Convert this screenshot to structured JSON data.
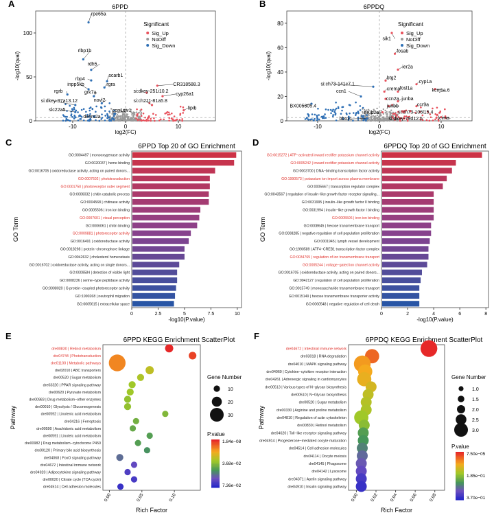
{
  "chart_data": [
    {
      "id": "A",
      "type": "scatter",
      "panel_label": "A",
      "title": "6PPD",
      "xlabel": "log2(FC)",
      "ylabel": "-log10(qval)",
      "xlim": [
        -17,
        17
      ],
      "ylim": [
        0,
        125
      ],
      "xticks": [
        -10,
        0,
        10
      ],
      "yticks": [
        0,
        50,
        100
      ],
      "legend": {
        "title": "Significant",
        "items": [
          {
            "label": "Sig_Up",
            "color": "#e8505b"
          },
          {
            "label": "NoDiff",
            "color": "#9a9a9a"
          },
          {
            "label": "Sig_Down",
            "color": "#2e6fb5"
          }
        ]
      },
      "labels": [
        {
          "text": "rpe65a",
          "x": -7,
          "y": 112,
          "tx": -6.5,
          "ty": 120
        },
        {
          "text": "rlbp1b",
          "x": -8,
          "y": 70,
          "tx": -9,
          "ty": 78
        },
        {
          "text": "rdh5",
          "x": -6.5,
          "y": 58,
          "tx": -7.2,
          "ty": 63
        },
        {
          "text": "scarb1",
          "x": -3.5,
          "y": 45,
          "tx": -3.2,
          "ty": 50
        },
        {
          "text": "rbp4",
          "x": -6.5,
          "y": 46,
          "tx": -9.5,
          "ty": 46
        },
        {
          "text": "rgra",
          "x": -4,
          "y": 38,
          "tx": -3.6,
          "ty": 40
        },
        {
          "text": "inpp5kb",
          "x": -7,
          "y": 36,
          "tx": -11,
          "ty": 40
        },
        {
          "text": "CR318588.3",
          "x": 6,
          "y": 40,
          "tx": 9,
          "ty": 40
        },
        {
          "text": "si:dkey-251i10.2",
          "x": 4,
          "y": 32,
          "tx": 1.5,
          "ty": 32
        },
        {
          "text": "cyp26a1",
          "x": 7,
          "y": 28,
          "tx": 9.5,
          "ty": 29
        },
        {
          "text": "rgrb",
          "x": -11,
          "y": 30,
          "tx": -13.5,
          "ty": 32
        },
        {
          "text": "grk7a",
          "x": -6,
          "y": 28,
          "tx": -7.8,
          "ty": 31
        },
        {
          "text": "si:dkey-97a13.12",
          "x": -9.5,
          "y": 18,
          "tx": -16,
          "ty": 21
        },
        {
          "text": "novl2",
          "x": -4.5,
          "y": 20,
          "tx": -6,
          "ty": 22
        },
        {
          "text": "si:ch211-81a5.8",
          "x": 5,
          "y": 18,
          "tx": 1.5,
          "ty": 21
        },
        {
          "text": "slc22a5",
          "x": -9.5,
          "y": 10,
          "tx": -14.5,
          "ty": 11
        },
        {
          "text": "lipib",
          "x": 11,
          "y": 12,
          "tx": 11.8,
          "ty": 13
        },
        {
          "text": "cpn1sw1",
          "x": -2,
          "y": 8,
          "tx": -2.5,
          "ty": 10
        },
        {
          "text": "dehrs2a",
          "x": -6,
          "y": 5,
          "tx": -8,
          "ty": 3
        }
      ]
    },
    {
      "id": "B",
      "type": "scatter",
      "panel_label": "B",
      "title": "6PPDQ",
      "xlabel": "log2(FC)",
      "ylabel": "-log10(qval)",
      "xlim": [
        -15,
        15
      ],
      "ylim": [
        0,
        90
      ],
      "xticks": [
        -10,
        0,
        10
      ],
      "yticks": [
        0,
        20,
        40,
        60,
        80
      ],
      "legend": {
        "title": "Significant",
        "items": [
          {
            "label": "Sig_Up",
            "color": "#e8505b"
          },
          {
            "label": "NoDiff",
            "color": "#9a9a9a"
          },
          {
            "label": "Sig_Down",
            "color": "#2e6fb5"
          }
        ]
      },
      "labels": [
        {
          "text": "sik1",
          "x": 2,
          "y": 72,
          "tx": 0.5,
          "ty": 66
        },
        {
          "text": "fosab",
          "x": 2.5,
          "y": 55,
          "tx": 2.8,
          "ty": 56
        },
        {
          "text": "ier2a",
          "x": 3,
          "y": 42,
          "tx": 3.7,
          "ty": 43
        },
        {
          "text": "btg2",
          "x": 1,
          "y": 33,
          "tx": 1.2,
          "ty": 34
        },
        {
          "text": "cyp1a",
          "x": 6,
          "y": 30,
          "tx": 6.4,
          "ty": 31
        },
        {
          "text": "si:ch73-141c7.1",
          "x": -1,
          "y": 28,
          "tx": -9.5,
          "ty": 29
        },
        {
          "text": "crema",
          "x": 0.8,
          "y": 24,
          "tx": 1.2,
          "ty": 25
        },
        {
          "text": "fosl1a",
          "x": 3,
          "y": 24,
          "tx": 3.3,
          "ty": 25.5
        },
        {
          "text": "kcnj1a.6",
          "x": 9,
          "y": 26,
          "tx": 8.5,
          "ty": 24
        },
        {
          "text": "ccn1",
          "x": -3,
          "y": 20,
          "tx": -7,
          "ty": 23
        },
        {
          "text": "ccn2a",
          "x": 1,
          "y": 18,
          "tx": 1.1,
          "ty": 17
        },
        {
          "text": "junba",
          "x": 3,
          "y": 16,
          "tx": 3.6,
          "ty": 17
        },
        {
          "text": "ccr9a",
          "x": 6,
          "y": 12,
          "tx": 6.1,
          "ty": 12
        },
        {
          "text": "junbb",
          "x": 1.5,
          "y": 12,
          "tx": 1.2,
          "ty": 11
        },
        {
          "text": "BX005305.4",
          "x": -11,
          "y": 14,
          "tx": -14.5,
          "ty": 11
        },
        {
          "text": "nr0b2a",
          "x": 0.5,
          "y": 7,
          "tx": -2.5,
          "ty": 5.5
        },
        {
          "text": "si:ch73-106l15.4",
          "x": 5,
          "y": 8,
          "tx": 3,
          "ty": 6
        },
        {
          "text": "bbox1",
          "x": -2,
          "y": 2,
          "tx": -6.5,
          "ty": 0.5
        },
        {
          "text": "si:dkey-79d12.5",
          "x": 4,
          "y": 2,
          "tx": 1.5,
          "ty": 0.5
        },
        {
          "text": "lcima",
          "x": 10,
          "y": 3,
          "tx": 9.5,
          "ty": 1
        }
      ]
    },
    {
      "id": "C",
      "type": "bar",
      "panel_label": "C",
      "title": "6PPD Top 20 of GO Enrichment",
      "xlabel": "-log10(P.value)",
      "ylabel": "GO Term",
      "xlim": [
        0,
        10.4
      ],
      "xticks": [
        0,
        2.5,
        5.0,
        7.5,
        10.0
      ],
      "categories": [
        "GO:0004497 | monooxygenase activity",
        "GO:0020037 | heme binding",
        "GO:0016705 | oxidoreductase activity, acting on paired donors...",
        "GO:0007602 | phototransduction",
        "GO:0001750 | photoreceptor outer segment",
        "GO:0006032 | chitin catabolic process",
        "GO:0004568 | chitinase activity",
        "GO:0005506 | iron ion binding",
        "GO:0007601 | visual perception",
        "GO:0006061 | chitin binding",
        "GO:0009881 | photoreceptor activity",
        "GO:0016491 | oxidoreductase activity",
        "GO:0018298 | protein−chromophore linkage",
        "GO:0042632 | cholesterol homeostasis",
        "GO:0016702 | oxidoreductase activity, acting on single donors...",
        "GO:0009584 | detection of visible light",
        "GO:0008236 | serine−type peptidase activity",
        "GO:0008020 | G protein−coupled photoreceptor activity",
        "GO:1990268 | neutrophil migration",
        "GO:0005615 | extracellular space"
      ],
      "values": [
        9.9,
        9.7,
        7.9,
        7.4,
        7.4,
        7.3,
        7.3,
        6.5,
        6.4,
        6.2,
        5.6,
        5.4,
        5.0,
        5.0,
        4.5,
        4.3,
        4.3,
        4.2,
        4.1,
        4.0
      ],
      "highlighted": [
        3,
        4,
        8,
        10
      ]
    },
    {
      "id": "D",
      "type": "bar",
      "panel_label": "D",
      "title": "6PPDQ Top 20 of GO Enrichment",
      "xlabel": "-log10(P.value)",
      "ylabel": "GO Term",
      "xlim": [
        0,
        8.2
      ],
      "xticks": [
        0,
        2,
        4,
        6,
        8
      ],
      "categories": [
        "GO:0015272 | ATP−activated inward rectifier potassium channel activity",
        "GO:0005242 | inward rectifier potassium channel activity",
        "GO:0003700 | DNA−binding transcription factor activity",
        "GO:1990573 | potassium ion import across plasma membrane",
        "GO:0005667 | transcription regulator complex",
        "GO:0043567 | regulation of insulin−like growth factor receptor signaling...",
        "GO:0031995 | insulin−like growth factor II binding",
        "GO:0031994 | insulin−like growth factor I binding",
        "GO:0005506 | iron ion binding",
        "GO:0008645 | hexose transmembrane transport",
        "GO:0008285 | negative regulation of cell population proliferation",
        "GO:0001945 | lymph vessel development",
        "GO:1990589 | ATF4−CREB1 transcription factor complex",
        "GO:0034765 | regulation of ion transmembrane transport",
        "GO:0005244 | voltage−gated ion channel activity",
        "GO:0016705 | oxidoreductase activity, acting on paired donors...",
        "GO:0042127 | regulation of cell population proliferation",
        "GO:0015749 | monosaccharide transmembrane transport",
        "GO:0015149 | hexose transmembrane transporter activity",
        "GO:0060548 | negative regulation of cell death"
      ],
      "values": [
        7.7,
        5.7,
        5.4,
        5.0,
        4.7,
        4.0,
        4.0,
        4.0,
        4.0,
        3.8,
        3.8,
        3.7,
        3.6,
        3.6,
        3.5,
        3.1,
        3.0,
        2.9,
        2.9,
        2.9
      ],
      "highlighted": [
        0,
        1,
        3,
        8,
        13,
        14
      ]
    },
    {
      "id": "E",
      "type": "scatter",
      "panel_label": "E",
      "title": "6PPD KEGG Enrichment ScatterPlot",
      "xlabel": "Rich Factor",
      "ylabel": "Pathway",
      "xlim": [
        -0.01,
        0.14
      ],
      "xticks": [
        0.0,
        0.05,
        0.1
      ],
      "categories": [
        "dre00830 | Retinol metabolism",
        "dre04744 | Phototransduction",
        "dre01100 | Metabolic pathways",
        "dre02010 | ABC transporters",
        "dre00520 | Sugar metabolism",
        "dre03320 | PPAR signaling pathway",
        "dre00620 | Pyruvate metabolism",
        "dre00983 | Drug metabolism−other enzymes",
        "dre00010 | Glycolysis / Gluconeogenesis",
        "dre00592 | Linolenic acid metabolism",
        "dre04216 | Ferroptosis",
        "dre00590 | Arachidonic acid metabolism",
        "dre00591 | Linoleic acid metabolism",
        "dre00982 | Drug metabolism−cytochrome P450",
        "dre00120 | Primary bile acid biosynthesis",
        "dre04068 | FoxO signaling pathway",
        "dre04672 | Intestinal immune network",
        "dre04920 | Adipocytokine signaling pathway",
        "dre00020 | Citrate cycle (TCA cycle)",
        "dre04514 | Cell adhesion molecules"
      ],
      "values": [
        0.092,
        0.128,
        0.012,
        0.062,
        0.048,
        0.035,
        0.032,
        0.028,
        0.028,
        0.086,
        0.041,
        0.036,
        0.062,
        0.044,
        0.058,
        0.016,
        0.038,
        0.028,
        0.038,
        0.017
      ],
      "gene_number": [
        5,
        4,
        35,
        5,
        3,
        3,
        3,
        3,
        3,
        2,
        2,
        2,
        2,
        2,
        2,
        3,
        2,
        2,
        2,
        2
      ],
      "pvalue_color": [
        0.0,
        0.05,
        0.18,
        0.38,
        0.42,
        0.45,
        0.45,
        0.48,
        0.48,
        0.52,
        0.55,
        0.58,
        0.62,
        0.62,
        0.66,
        0.75,
        0.85,
        0.9,
        0.92,
        0.96
      ],
      "highlighted": [
        0,
        1,
        2
      ],
      "size_legend": {
        "title": "Gene Number",
        "values": [
          "10",
          "20",
          "30"
        ],
        "radii_frac": [
          0.33,
          0.66,
          1.0
        ]
      },
      "color_legend": {
        "title": "P.value",
        "ticks": [
          "1.84e−08",
          "3.68e−02",
          "7.36e−02"
        ]
      }
    },
    {
      "id": "F",
      "type": "scatter",
      "panel_label": "F",
      "title": "6PPDQ KEGG Enrichment ScatterPlot",
      "xlabel": "Rich Factor",
      "ylabel": "Pathway",
      "xlim": [
        -0.008,
        0.09
      ],
      "xticks": [
        0.0,
        0.02,
        0.04,
        0.06,
        0.08
      ],
      "categories": [
        "dre04672 | Intestinal immune network",
        "dre03018 | RNA degradation",
        "dre04010 | MAPK signaling pathway",
        "dre04060 | Cytokine−cytokine receptor interaction",
        "dre04261 | Adrenergic signaling in cardiomyocytes",
        "dre00513 | Various types of N−glycan biosynthesis",
        "dre00510 | N−Glycan biosynthesis",
        "dre00520 | Sugar metabolism",
        "dre00330 | Arginine and proline metabolism",
        "dre04810 | Regulation of actin cytoskeleton",
        "dre00830 | Retinol metabolism",
        "dre04620 | Toll−like receptor signaling pathway",
        "dre04914 | Progesterone−mediated oocyte maturation",
        "dre04514 | Cell adhesion molecules",
        "dre04114 | Oocyte meiosis",
        "dre04145 | Phagosome",
        "dre04142 | Lysosome",
        "dre04371 | Apelin signaling pathway",
        "dre04910 | Insulin signaling pathway"
      ],
      "values": [
        0.074,
        0.016,
        0.006,
        0.009,
        0.008,
        0.015,
        0.012,
        0.01,
        0.01,
        0.005,
        0.008,
        0.007,
        0.007,
        0.006,
        0.006,
        0.005,
        0.005,
        0.005,
        0.005
      ],
      "gene_number": [
        3,
        2,
        3,
        2,
        2,
        1,
        1,
        1,
        1,
        2,
        1,
        1,
        1,
        1,
        1,
        1,
        1,
        1,
        1
      ],
      "pvalue_color": [
        0.0,
        0.12,
        0.22,
        0.25,
        0.28,
        0.33,
        0.38,
        0.4,
        0.42,
        0.45,
        0.5,
        0.62,
        0.65,
        0.7,
        0.76,
        0.8,
        0.85,
        0.92,
        0.96
      ],
      "highlighted": [
        0
      ],
      "size_legend": {
        "title": "Gene Number",
        "values": [
          "1.0",
          "1.5",
          "2.0",
          "2.5",
          "3.0"
        ],
        "radii_frac": [
          0.2,
          0.35,
          0.5,
          0.72,
          1.0
        ]
      },
      "color_legend": {
        "title": "P.value",
        "ticks": [
          "7.50e−05",
          "1.85e−01",
          "3.70e−01"
        ]
      }
    }
  ]
}
